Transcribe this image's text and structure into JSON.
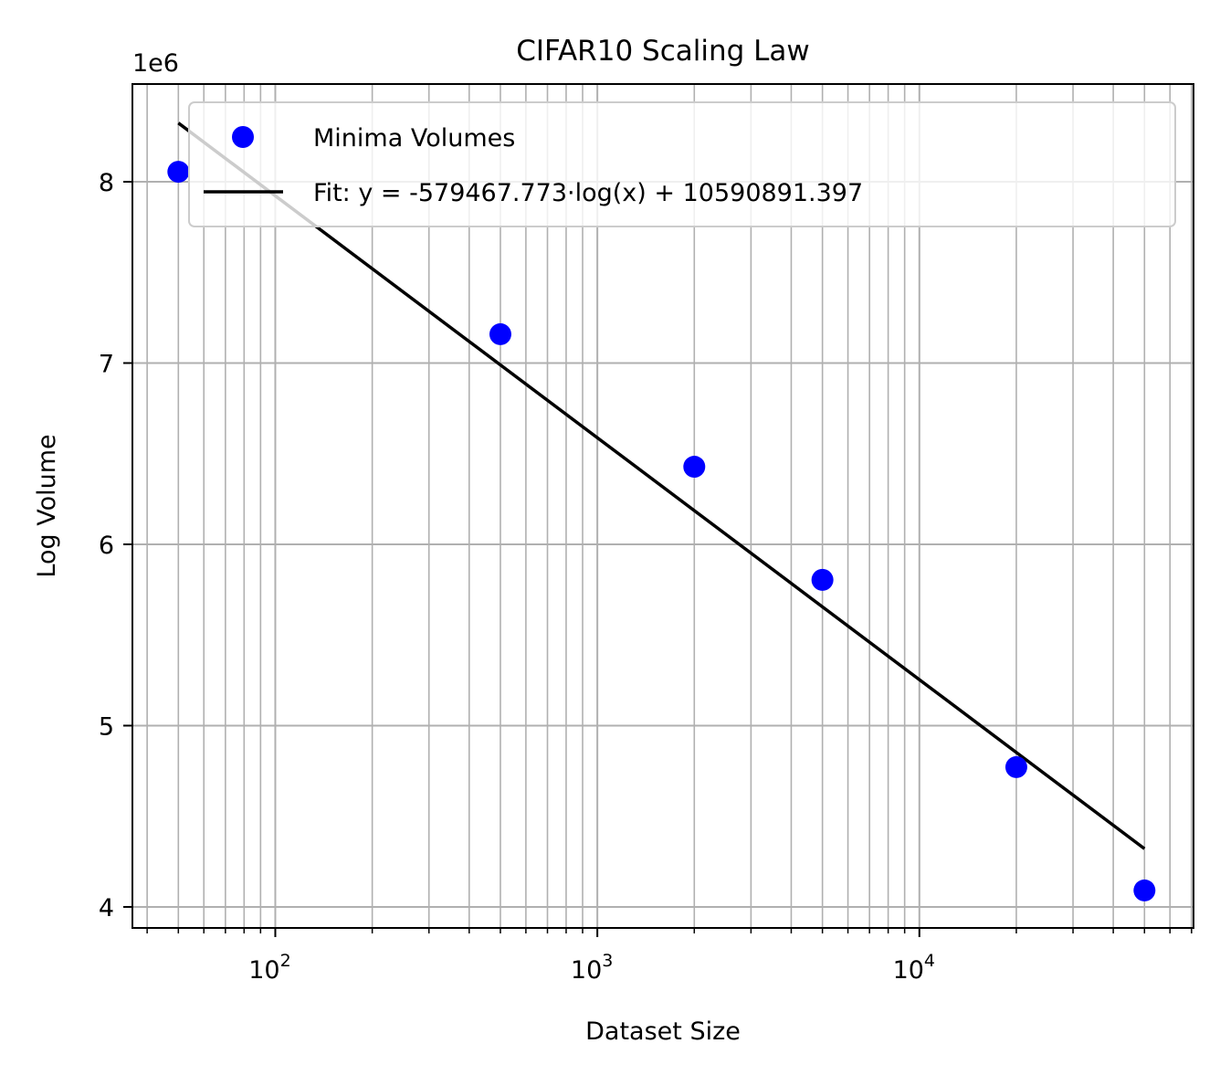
{
  "chart_data": {
    "type": "scatter",
    "title": "CIFAR10 Scaling Law",
    "xlabel": "Dataset Size",
    "ylabel": "Log Volume",
    "x_scale": "log",
    "y_offset_label": "1e6",
    "xlim": [
      36,
      71000
    ],
    "ylim": [
      3884000,
      8539000
    ],
    "x_ticks": [
      {
        "value": 100,
        "base": "10",
        "exp": "2"
      },
      {
        "value": 1000,
        "base": "10",
        "exp": "3"
      },
      {
        "value": 10000,
        "base": "10",
        "exp": "4"
      }
    ],
    "y_ticks": [
      {
        "value": 4000000,
        "label": "4"
      },
      {
        "value": 5000000,
        "label": "5"
      },
      {
        "value": 6000000,
        "label": "6"
      },
      {
        "value": 7000000,
        "label": "7"
      },
      {
        "value": 8000000,
        "label": "8"
      }
    ],
    "grid": true,
    "legend_position": "upper right",
    "series": [
      {
        "name": "Minima Volumes",
        "kind": "scatter",
        "color": "#0000ff",
        "x": [
          50,
          500,
          2000,
          5000,
          20000,
          50000
        ],
        "y": [
          8055000,
          7159000,
          6428000,
          5804000,
          4771000,
          4091000
        ]
      },
      {
        "name": "Fit: y = -579467.773·log(x) + 10590891.397",
        "kind": "line",
        "color": "#000000",
        "slope": -579467.773,
        "intercept": 10590891.397,
        "x_range": [
          50,
          50000
        ]
      }
    ]
  }
}
